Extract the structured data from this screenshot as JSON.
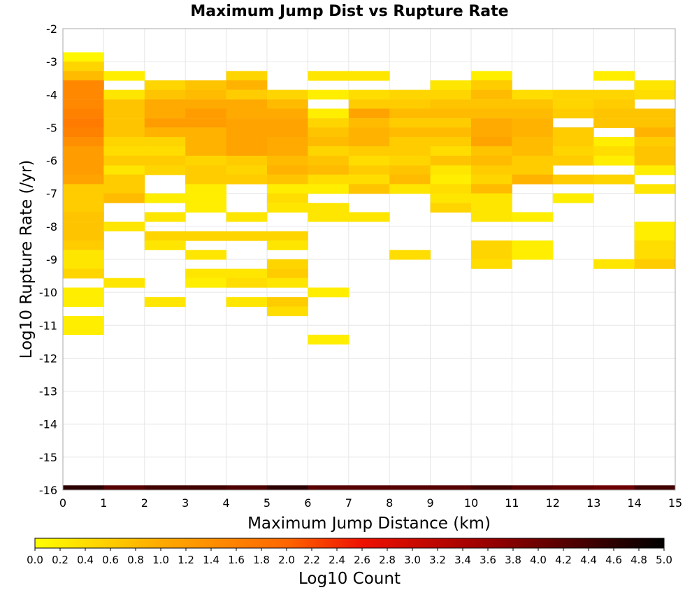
{
  "chart_data": {
    "type": "heatmap",
    "title": "Maximum Jump Dist vs Rupture Rate",
    "xlabel": "Maximum Jump Distance (km)",
    "ylabel": "Log10 Rupture Rate (/yr)",
    "colorbar_label": "Log10 Count",
    "xlim": [
      0,
      15
    ],
    "ylim": [
      -16,
      -2
    ],
    "x_bin_width": 1,
    "y_bin_height": 0.2857,
    "x_ticks": [
      "0",
      "1",
      "2",
      "3",
      "4",
      "5",
      "6",
      "7",
      "8",
      "9",
      "10",
      "11",
      "12",
      "13",
      "14",
      "15"
    ],
    "y_ticks": [
      "-2",
      "-3",
      "-4",
      "-5",
      "-6",
      "-7",
      "-8",
      "-9",
      "-10",
      "-11",
      "-12",
      "-13",
      "-14",
      "-15",
      "-16"
    ],
    "colorbar_ticks": [
      "0.0",
      "0.2",
      "0.4",
      "0.6",
      "0.8",
      "1.0",
      "1.2",
      "1.4",
      "1.6",
      "1.8",
      "2.0",
      "2.2",
      "2.4",
      "2.6",
      "2.8",
      "3.0",
      "3.2",
      "3.4",
      "3.6",
      "3.8",
      "4.0",
      "4.2",
      "4.4",
      "4.6",
      "4.8",
      "5.0"
    ],
    "color_range": [
      0,
      5
    ],
    "colormap": [
      "#ffff00",
      "#ffaa00",
      "#ff6600",
      "#ee1100",
      "#990000",
      "#000000"
    ],
    "grid": true,
    "columns": [
      {
        "x": 0,
        "cells": [
          [
            -2.86,
            0.1
          ],
          [
            -3.14,
            0.5
          ],
          [
            -3.43,
            0.8
          ],
          [
            -3.71,
            1.5
          ],
          [
            -4.0,
            1.5
          ],
          [
            -4.29,
            1.5
          ],
          [
            -4.57,
            1.6
          ],
          [
            -4.86,
            1.7
          ],
          [
            -5.14,
            1.6
          ],
          [
            -5.43,
            1.4
          ],
          [
            -5.71,
            1.2
          ],
          [
            -6.0,
            1.2
          ],
          [
            -6.29,
            1.2
          ],
          [
            -6.57,
            1.1
          ],
          [
            -6.86,
            0.6
          ],
          [
            -7.14,
            0.6
          ],
          [
            -7.43,
            0.6
          ],
          [
            -7.71,
            0.7
          ],
          [
            -8.0,
            0.7
          ],
          [
            -8.29,
            0.7
          ],
          [
            -8.57,
            0.6
          ],
          [
            -8.86,
            0.3
          ],
          [
            -9.14,
            0.3
          ],
          [
            -9.43,
            0.5
          ],
          [
            -10.0,
            0.2
          ],
          [
            -10.29,
            0.2
          ],
          [
            -10.86,
            0.2
          ],
          [
            -11.14,
            0.2
          ],
          [
            -16.0,
            4.6
          ]
        ]
      },
      {
        "x": 1,
        "cells": [
          [
            -3.43,
            0.2
          ],
          [
            -4.0,
            0.3
          ],
          [
            -4.29,
            0.7
          ],
          [
            -4.57,
            0.7
          ],
          [
            -4.86,
            0.7
          ],
          [
            -5.14,
            0.7
          ],
          [
            -5.43,
            0.5
          ],
          [
            -5.71,
            0.4
          ],
          [
            -6.0,
            0.6
          ],
          [
            -6.29,
            0.3
          ],
          [
            -6.57,
            0.6
          ],
          [
            -6.86,
            0.6
          ],
          [
            -7.14,
            0.8
          ],
          [
            -8.0,
            0.3
          ],
          [
            -9.71,
            0.3
          ],
          [
            -16.0,
            4.2
          ]
        ]
      },
      {
        "x": 2,
        "cells": [
          [
            -3.71,
            0.5
          ],
          [
            -4.0,
            0.7
          ],
          [
            -4.29,
            1.0
          ],
          [
            -4.57,
            1.0
          ],
          [
            -4.86,
            1.2
          ],
          [
            -5.14,
            0.9
          ],
          [
            -5.43,
            0.5
          ],
          [
            -5.71,
            0.4
          ],
          [
            -6.0,
            0.6
          ],
          [
            -6.29,
            0.5
          ],
          [
            -7.14,
            0.2
          ],
          [
            -7.71,
            0.3
          ],
          [
            -8.29,
            0.5
          ],
          [
            -8.57,
            0.3
          ],
          [
            -10.29,
            0.3
          ],
          [
            -16.0,
            4.4
          ]
        ]
      },
      {
        "x": 3,
        "cells": [
          [
            -3.71,
            0.7
          ],
          [
            -4.0,
            0.8
          ],
          [
            -4.29,
            1.0
          ],
          [
            -4.57,
            1.2
          ],
          [
            -4.86,
            1.2
          ],
          [
            -5.14,
            0.9
          ],
          [
            -5.43,
            0.9
          ],
          [
            -5.71,
            0.9
          ],
          [
            -6.0,
            0.5
          ],
          [
            -6.29,
            0.6
          ],
          [
            -6.57,
            0.6
          ],
          [
            -6.86,
            0.2
          ],
          [
            -7.14,
            0.2
          ],
          [
            -7.43,
            0.2
          ],
          [
            -8.29,
            0.5
          ],
          [
            -8.86,
            0.3
          ],
          [
            -9.43,
            0.3
          ],
          [
            -9.71,
            0.2
          ],
          [
            -16.0,
            4.4
          ]
        ]
      },
      {
        "x": 4,
        "cells": [
          [
            -3.43,
            0.5
          ],
          [
            -3.71,
            0.9
          ],
          [
            -4.0,
            0.6
          ],
          [
            -4.29,
            1.0
          ],
          [
            -4.57,
            1.0
          ],
          [
            -4.86,
            1.1
          ],
          [
            -5.14,
            1.1
          ],
          [
            -5.43,
            1.1
          ],
          [
            -5.71,
            1.1
          ],
          [
            -6.0,
            0.6
          ],
          [
            -6.29,
            0.5
          ],
          [
            -6.57,
            0.6
          ],
          [
            -7.71,
            0.3
          ],
          [
            -8.29,
            0.5
          ],
          [
            -9.43,
            0.3
          ],
          [
            -9.71,
            0.4
          ],
          [
            -10.29,
            0.3
          ],
          [
            -16.0,
            4.3
          ]
        ]
      },
      {
        "x": 5,
        "cells": [
          [
            -4.0,
            0.5
          ],
          [
            -4.29,
            0.8
          ],
          [
            -4.57,
            1.0
          ],
          [
            -4.86,
            1.1
          ],
          [
            -5.14,
            1.1
          ],
          [
            -5.43,
            1.0
          ],
          [
            -5.71,
            1.0
          ],
          [
            -6.0,
            0.8
          ],
          [
            -6.29,
            0.9
          ],
          [
            -6.57,
            0.7
          ],
          [
            -6.86,
            0.2
          ],
          [
            -7.14,
            0.4
          ],
          [
            -7.43,
            0.3
          ],
          [
            -8.29,
            0.5
          ],
          [
            -8.57,
            0.3
          ],
          [
            -9.14,
            0.5
          ],
          [
            -9.43,
            0.6
          ],
          [
            -9.71,
            0.3
          ],
          [
            -10.29,
            0.6
          ],
          [
            -10.57,
            0.4
          ],
          [
            -16.0,
            4.6
          ]
        ]
      },
      {
        "x": 6,
        "cells": [
          [
            -3.43,
            0.3
          ],
          [
            -4.0,
            0.2
          ],
          [
            -4.57,
            0.2
          ],
          [
            -4.86,
            0.5
          ],
          [
            -5.14,
            0.7
          ],
          [
            -5.43,
            0.8
          ],
          [
            -5.71,
            0.5
          ],
          [
            -6.0,
            0.7
          ],
          [
            -6.29,
            0.8
          ],
          [
            -6.57,
            0.4
          ],
          [
            -6.86,
            0.2
          ],
          [
            -7.43,
            0.3
          ],
          [
            -7.71,
            0.3
          ],
          [
            -10.0,
            0.2
          ],
          [
            -11.43,
            0.2
          ],
          [
            -16.0,
            4.2
          ]
        ]
      },
      {
        "x": 7,
        "cells": [
          [
            -3.43,
            0.3
          ],
          [
            -4.0,
            0.4
          ],
          [
            -4.29,
            0.6
          ],
          [
            -4.57,
            1.1
          ],
          [
            -4.86,
            0.8
          ],
          [
            -5.14,
            0.9
          ],
          [
            -5.43,
            0.9
          ],
          [
            -5.71,
            0.6
          ],
          [
            -6.0,
            0.4
          ],
          [
            -6.29,
            0.6
          ],
          [
            -6.57,
            0.4
          ],
          [
            -6.86,
            0.7
          ],
          [
            -7.71,
            0.3
          ],
          [
            -16.0,
            4.2
          ]
        ]
      },
      {
        "x": 8,
        "cells": [
          [
            -4.0,
            0.5
          ],
          [
            -4.29,
            0.6
          ],
          [
            -4.57,
            0.8
          ],
          [
            -4.86,
            0.6
          ],
          [
            -5.14,
            0.8
          ],
          [
            -5.43,
            0.6
          ],
          [
            -5.71,
            0.6
          ],
          [
            -6.0,
            0.5
          ],
          [
            -6.29,
            0.7
          ],
          [
            -6.57,
            0.8
          ],
          [
            -6.86,
            0.3
          ],
          [
            -8.86,
            0.4
          ],
          [
            -16.0,
            4.2
          ]
        ]
      },
      {
        "x": 9,
        "cells": [
          [
            -3.71,
            0.3
          ],
          [
            -4.0,
            0.5
          ],
          [
            -4.29,
            0.7
          ],
          [
            -4.57,
            0.8
          ],
          [
            -4.86,
            0.6
          ],
          [
            -5.14,
            0.8
          ],
          [
            -5.43,
            0.6
          ],
          [
            -5.71,
            0.4
          ],
          [
            -6.0,
            0.7
          ],
          [
            -6.29,
            0.3
          ],
          [
            -6.57,
            0.2
          ],
          [
            -6.86,
            0.4
          ],
          [
            -7.14,
            0.3
          ],
          [
            -7.43,
            0.5
          ],
          [
            -16.0,
            4.2
          ]
        ]
      },
      {
        "x": 10,
        "cells": [
          [
            -3.43,
            0.2
          ],
          [
            -3.71,
            0.6
          ],
          [
            -4.0,
            0.8
          ],
          [
            -4.29,
            0.7
          ],
          [
            -4.57,
            0.8
          ],
          [
            -4.86,
            1.0
          ],
          [
            -5.14,
            1.0
          ],
          [
            -5.43,
            1.1
          ],
          [
            -5.71,
            0.7
          ],
          [
            -6.0,
            0.8
          ],
          [
            -6.29,
            0.6
          ],
          [
            -6.57,
            0.5
          ],
          [
            -6.86,
            0.8
          ],
          [
            -7.14,
            0.3
          ],
          [
            -7.43,
            0.3
          ],
          [
            -7.71,
            0.3
          ],
          [
            -8.57,
            0.5
          ],
          [
            -8.86,
            0.5
          ],
          [
            -9.14,
            0.4
          ],
          [
            -16.0,
            4.4
          ]
        ]
      },
      {
        "x": 11,
        "cells": [
          [
            -4.0,
            0.4
          ],
          [
            -4.29,
            0.7
          ],
          [
            -4.57,
            0.8
          ],
          [
            -4.86,
            0.9
          ],
          [
            -5.14,
            0.9
          ],
          [
            -5.43,
            0.8
          ],
          [
            -5.71,
            0.8
          ],
          [
            -6.0,
            0.6
          ],
          [
            -6.29,
            0.6
          ],
          [
            -6.57,
            0.9
          ],
          [
            -7.71,
            0.2
          ],
          [
            -8.57,
            0.2
          ],
          [
            -8.86,
            0.2
          ],
          [
            -16.0,
            4.2
          ]
        ]
      },
      {
        "x": 12,
        "cells": [
          [
            -4.0,
            0.5
          ],
          [
            -4.29,
            0.5
          ],
          [
            -4.57,
            0.6
          ],
          [
            -5.14,
            0.6
          ],
          [
            -5.43,
            0.6
          ],
          [
            -5.71,
            0.5
          ],
          [
            -6.0,
            0.6
          ],
          [
            -6.57,
            0.6
          ],
          [
            -7.14,
            0.2
          ],
          [
            -16.0,
            4.1
          ]
        ]
      },
      {
        "x": 13,
        "cells": [
          [
            -3.43,
            0.2
          ],
          [
            -4.0,
            0.5
          ],
          [
            -4.29,
            0.6
          ],
          [
            -4.57,
            0.7
          ],
          [
            -4.86,
            0.7
          ],
          [
            -5.43,
            0.2
          ],
          [
            -5.71,
            0.4
          ],
          [
            -6.0,
            0.2
          ],
          [
            -6.57,
            0.5
          ],
          [
            -9.14,
            0.3
          ],
          [
            -16.0,
            4.0
          ]
        ]
      },
      {
        "x": 14,
        "cells": [
          [
            -3.71,
            0.3
          ],
          [
            -4.0,
            0.4
          ],
          [
            -4.57,
            0.7
          ],
          [
            -4.86,
            0.7
          ],
          [
            -5.14,
            0.9
          ],
          [
            -5.43,
            0.6
          ],
          [
            -5.71,
            0.7
          ],
          [
            -6.0,
            0.7
          ],
          [
            -6.29,
            0.2
          ],
          [
            -6.86,
            0.3
          ],
          [
            -8.0,
            0.2
          ],
          [
            -8.29,
            0.2
          ],
          [
            -8.57,
            0.4
          ],
          [
            -8.86,
            0.4
          ],
          [
            -9.14,
            0.6
          ],
          [
            -16.0,
            4.4
          ]
        ]
      }
    ]
  }
}
